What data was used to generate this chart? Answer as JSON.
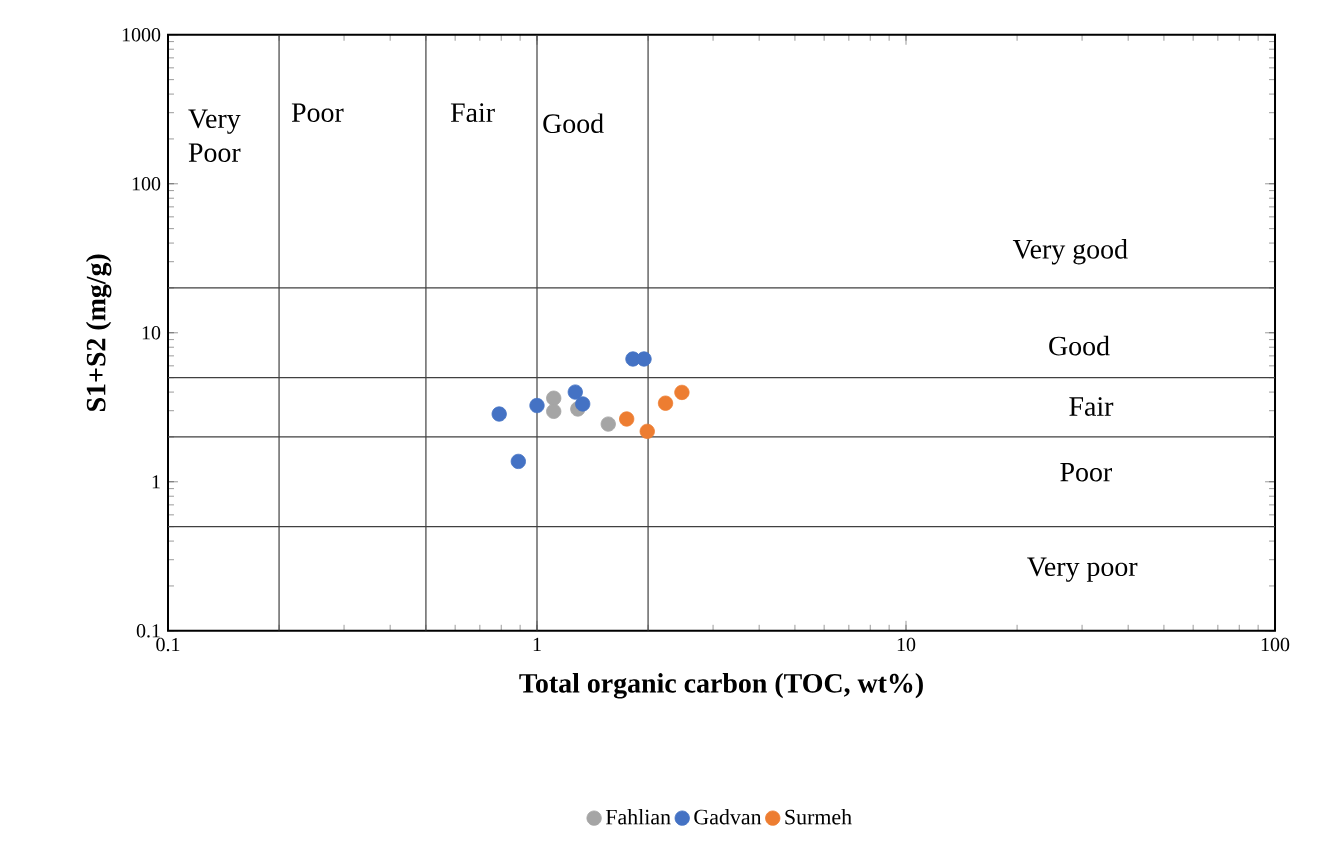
{
  "chart_data": {
    "type": "scatter",
    "xlabel": "Total organic carbon (TOC, wt%)",
    "ylabel": "S1+S2 (mg/g)",
    "log": "xy",
    "xlim": [
      0.1,
      100
    ],
    "ylim": [
      0.1,
      1000
    ],
    "xticks": [
      0.1,
      1,
      10,
      100
    ],
    "yticks": [
      0.1,
      1,
      10,
      100,
      1000
    ],
    "grid": false,
    "legend": "bottom",
    "marker": "circle",
    "series": [
      {
        "name": "Fahlian",
        "color": "#a5a5a5",
        "x": [
          1.11,
          1.11,
          1.29,
          1.56
        ],
        "values": [
          3.64,
          2.97,
          3.08,
          2.44
        ]
      },
      {
        "name": "Gadvan",
        "color": "#4472c4",
        "x": [
          0.79,
          0.89,
          1.0,
          1.27,
          1.33,
          1.82,
          1.95
        ],
        "values": [
          2.85,
          1.37,
          3.25,
          4.0,
          3.33,
          6.67,
          6.67
        ]
      },
      {
        "name": "Surmeh",
        "color": "#ed7d31",
        "x": [
          1.75,
          1.99,
          2.23,
          2.47
        ],
        "values": [
          2.64,
          2.18,
          3.37,
          3.98
        ]
      }
    ],
    "ref_lines": [
      {
        "axis": "x",
        "value": 0.2,
        "color": "#404040"
      },
      {
        "axis": "x",
        "value": 0.5,
        "color": "#404040"
      },
      {
        "axis": "x",
        "value": 1,
        "color": "#404040"
      },
      {
        "axis": "x",
        "value": 2,
        "color": "#404040"
      },
      {
        "axis": "y",
        "value": 0.5,
        "color": "#404040"
      },
      {
        "axis": "y",
        "value": 2,
        "color": "#404040"
      },
      {
        "axis": "y",
        "value": 5,
        "color": "#404040"
      },
      {
        "axis": "y",
        "value": 20,
        "color": "#404040"
      }
    ],
    "annotations": [
      "Very Poor",
      "Poor",
      "Fair",
      "Good",
      "Very good",
      "Good",
      "Fair",
      "Poor",
      "Very poor"
    ]
  }
}
